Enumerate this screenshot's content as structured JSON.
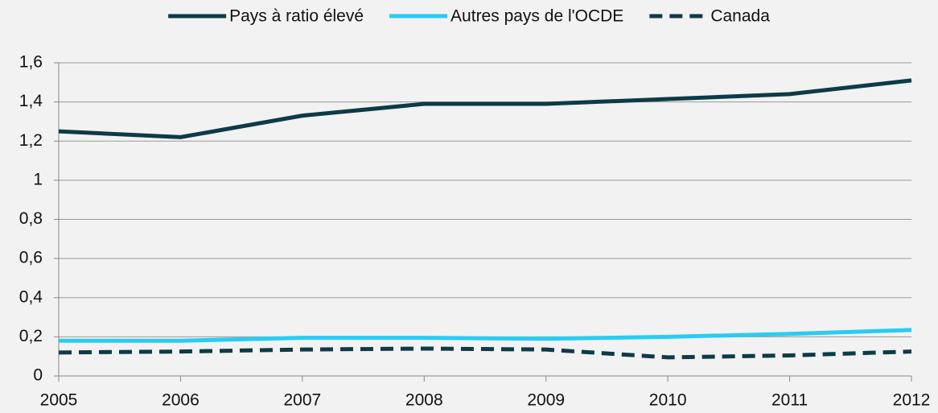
{
  "chart_data": {
    "type": "line",
    "x": [
      2005,
      2006,
      2007,
      2008,
      2009,
      2010,
      2011,
      2012
    ],
    "xlim": [
      2005,
      2012
    ],
    "xticks": [
      2005,
      2006,
      2007,
      2008,
      2009,
      2010,
      2011,
      2012
    ],
    "ylim": [
      0,
      1.6
    ],
    "yticks": [
      0,
      {
        "value": 0.2,
        "label": "0,2"
      },
      {
        "value": 0.4,
        "label": "0,4"
      },
      {
        "value": 0.6,
        "label": "0,6"
      },
      {
        "value": 0.8,
        "label": "0,8"
      },
      1,
      {
        "value": 1.2,
        "label": "1,2"
      },
      {
        "value": 1.4,
        "label": "1,4"
      },
      {
        "value": 1.6,
        "label": "1,6"
      }
    ],
    "grid": true,
    "legend": "top",
    "series": [
      {
        "name": "Pays à ratio élevé",
        "color": "#0d3b47",
        "line_style": "solid",
        "values": [
          1.25,
          1.22,
          1.33,
          1.39,
          1.39,
          1.415,
          1.44,
          1.51
        ]
      },
      {
        "name": "Autres pays de l'OCDE",
        "color": "#29ccf2",
        "line_style": "solid",
        "values": [
          0.18,
          0.18,
          0.195,
          0.195,
          0.19,
          0.2,
          0.215,
          0.235
        ]
      },
      {
        "name": "Canada",
        "color": "#0d3b47",
        "line_style": "dashed",
        "values": [
          0.12,
          0.125,
          0.135,
          0.14,
          0.135,
          0.095,
          0.105,
          0.125
        ]
      }
    ]
  }
}
